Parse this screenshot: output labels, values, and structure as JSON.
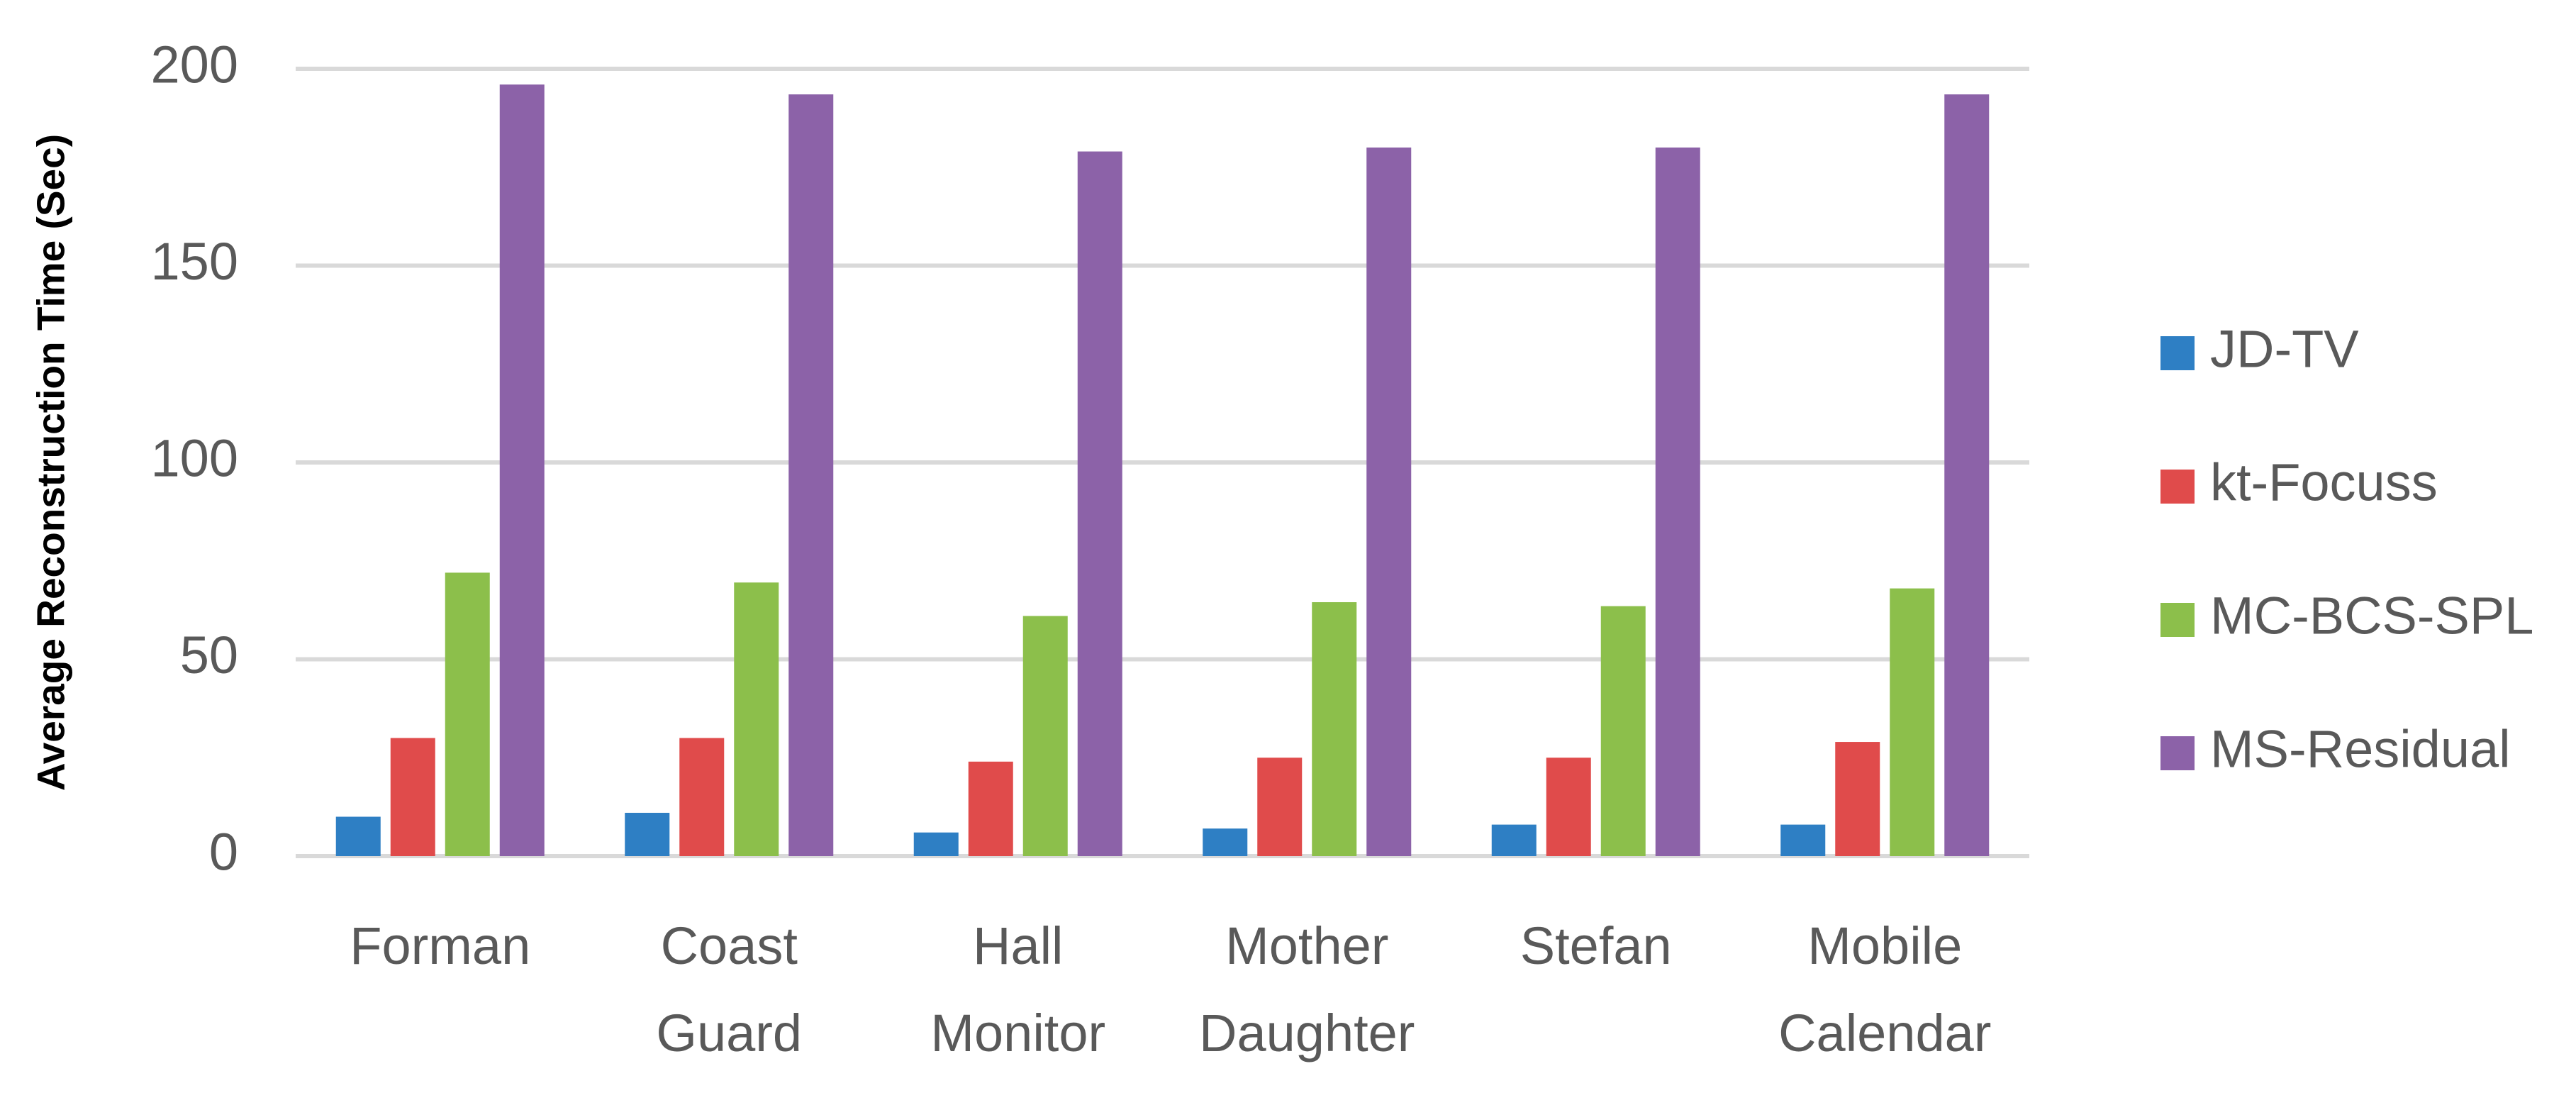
{
  "chart_data": {
    "type": "bar",
    "y_label": "Average Reconstruction Time (Sec)",
    "categories": [
      "Forman",
      "Coast Guard",
      "Hall Monitor",
      "Mother Daughter",
      "Stefan",
      "Mobile Calendar"
    ],
    "series": [
      {
        "name": "JD-TV",
        "color": "#2e7fc4",
        "values": [
          10,
          11,
          6,
          7,
          8,
          8
        ]
      },
      {
        "name": "kt-Focuss",
        "color": "#e04b4b",
        "values": [
          30,
          30,
          24,
          25,
          25,
          29
        ]
      },
      {
        "name": "MC-BCS-SPL",
        "color": "#8cbf4b",
        "values": [
          72,
          69.5,
          61,
          64.5,
          63.5,
          68
        ]
      },
      {
        "name": "MS-Residual",
        "color": "#8c62a8",
        "values": [
          196,
          193.5,
          179,
          180,
          180,
          193.5
        ]
      }
    ],
    "ylim": [
      0,
      200
    ],
    "yticks": [
      0,
      50,
      100,
      150,
      200
    ],
    "grid": true,
    "legend": "right"
  }
}
